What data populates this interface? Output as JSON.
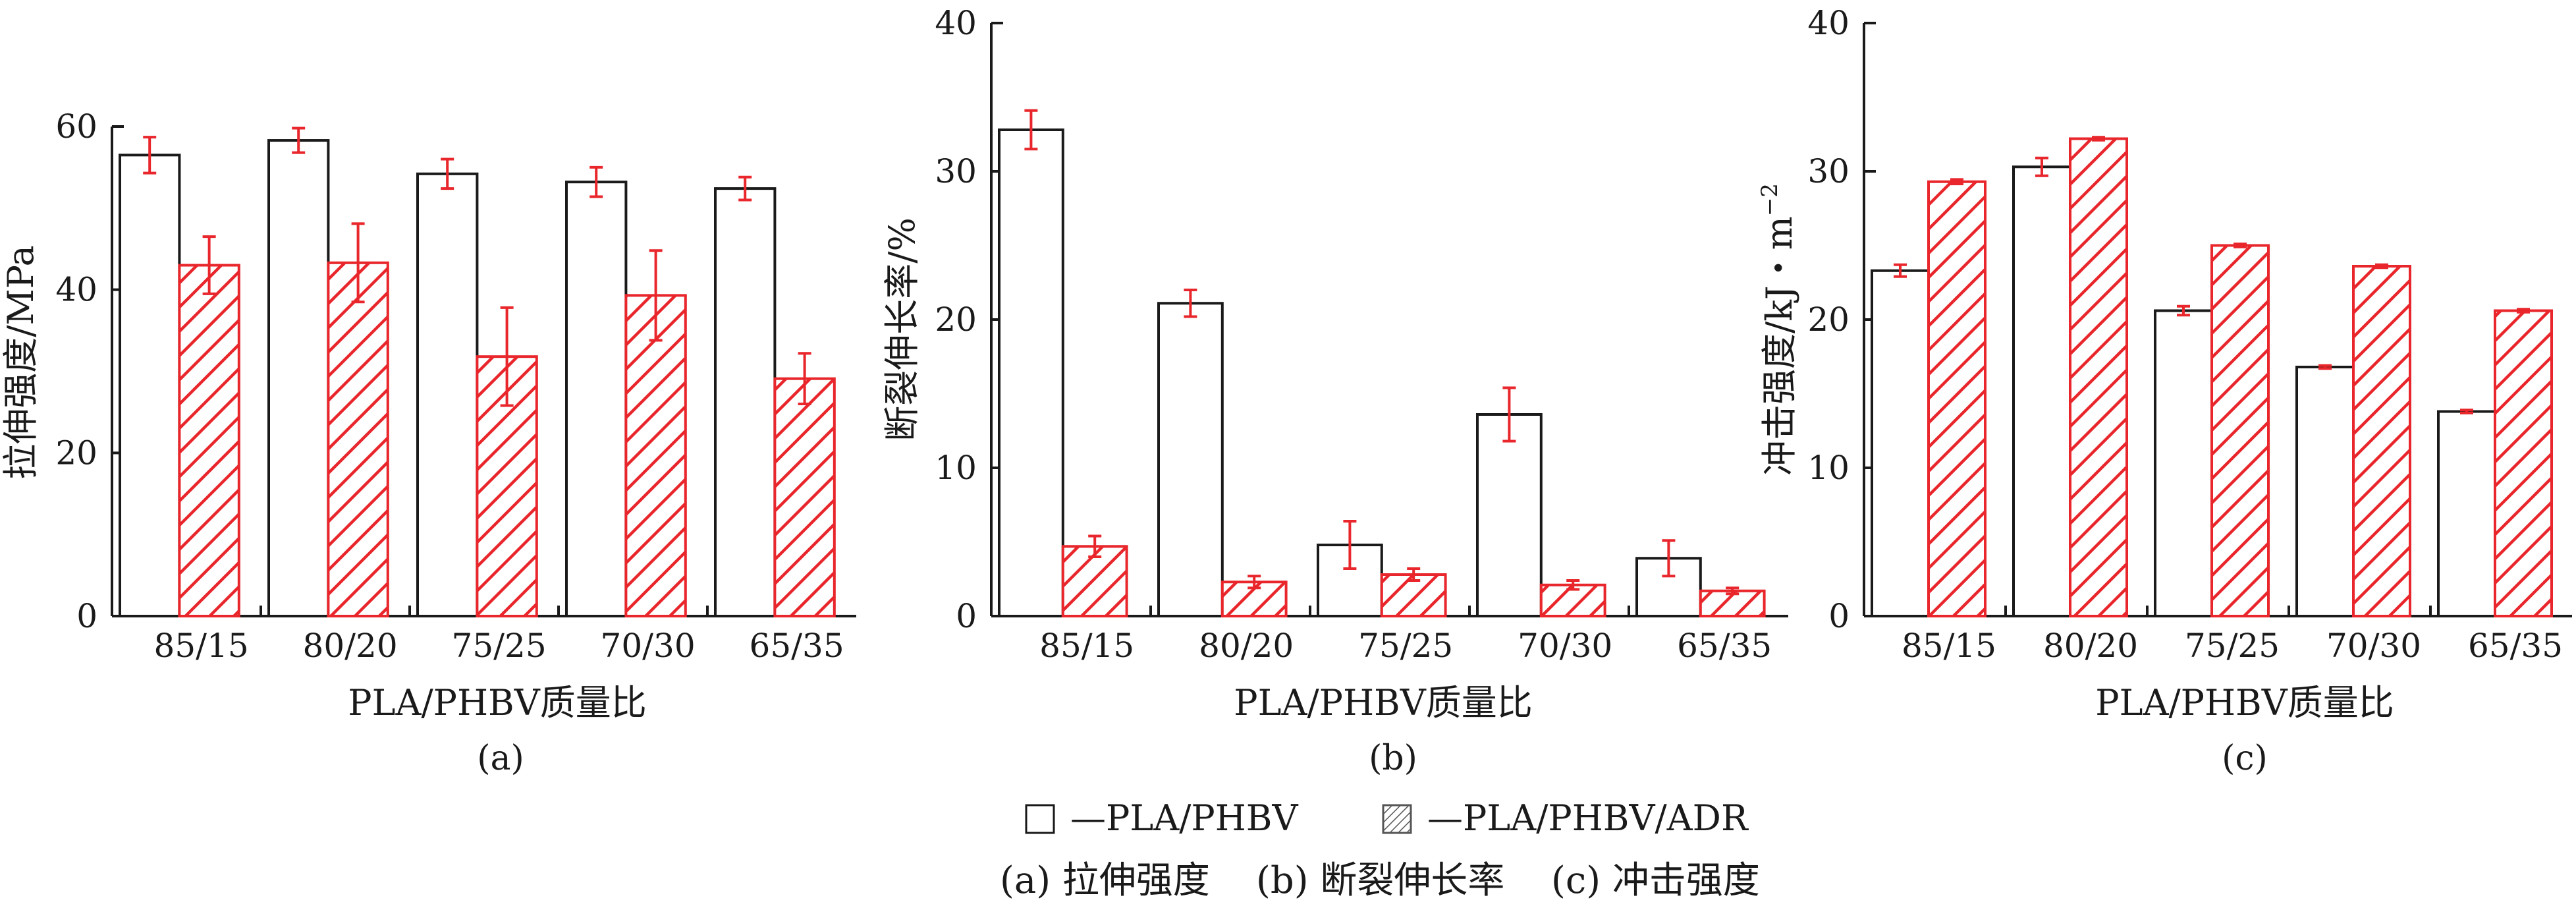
{
  "colors": {
    "series_a_stroke": "#1a1a1a",
    "series_a_fill": "#ffffff",
    "series_b_stroke": "#e8262b",
    "series_b_hatch": "#e8262b",
    "error_bar": "#e8262b"
  },
  "chart_data": [
    {
      "type": "bar",
      "panel_label": "(a)",
      "ylabel": "拉伸强度/MPa",
      "xlabel": "PLA/PHBV质量比",
      "categories": [
        "85/15",
        "80/20",
        "75/25",
        "70/30",
        "65/35"
      ],
      "ylim": [
        0,
        60
      ],
      "yticks": [
        0,
        20,
        40,
        60
      ],
      "series": [
        {
          "values": [
            56.5,
            58.3,
            54.2,
            53.2,
            52.4
          ],
          "errors": [
            2.2,
            1.5,
            1.8,
            1.8,
            1.4
          ]
        },
        {
          "values": [
            43.0,
            43.3,
            31.8,
            39.3,
            29.1
          ],
          "errors": [
            3.5,
            4.8,
            6.0,
            5.5,
            3.1
          ]
        }
      ]
    },
    {
      "type": "bar",
      "panel_label": "(b)",
      "ylabel": "断裂伸长率/%",
      "xlabel": "PLA/PHBV质量比",
      "categories": [
        "85/15",
        "80/20",
        "75/25",
        "70/30",
        "65/35"
      ],
      "ylim": [
        0,
        40
      ],
      "yticks": [
        0,
        10,
        20,
        30,
        40
      ],
      "series": [
        {
          "values": [
            32.8,
            21.1,
            4.8,
            13.6,
            3.9
          ],
          "errors": [
            1.3,
            0.9,
            1.6,
            1.8,
            1.2
          ]
        },
        {
          "values": [
            4.7,
            2.3,
            2.8,
            2.1,
            1.7
          ],
          "errors": [
            0.7,
            0.4,
            0.4,
            0.3,
            0.2
          ]
        }
      ]
    },
    {
      "type": "bar",
      "panel_label": "(c)",
      "ylabel": "冲击强度/kJ・m",
      "ylabel_superscript": "−2",
      "xlabel": "PLA/PHBV质量比",
      "categories": [
        "85/15",
        "80/20",
        "75/25",
        "70/30",
        "65/35"
      ],
      "ylim": [
        0,
        40
      ],
      "yticks": [
        0,
        10,
        20,
        30,
        40
      ],
      "series": [
        {
          "values": [
            23.3,
            30.3,
            20.6,
            16.8,
            13.8
          ],
          "errors": [
            0.4,
            0.6,
            0.3,
            0.1,
            0.1
          ]
        },
        {
          "values": [
            29.3,
            32.2,
            25.0,
            23.6,
            20.6
          ],
          "errors": [
            0.15,
            0.1,
            0.1,
            0.1,
            0.1
          ]
        }
      ]
    }
  ],
  "legend": {
    "items": [
      "—PLA/PHBV",
      "—PLA/PHBV/ADR"
    ]
  },
  "caption": {
    "parts": [
      "(a) 拉伸强度",
      "(b) 断裂伸长率",
      "(c) 冲击强度"
    ]
  }
}
